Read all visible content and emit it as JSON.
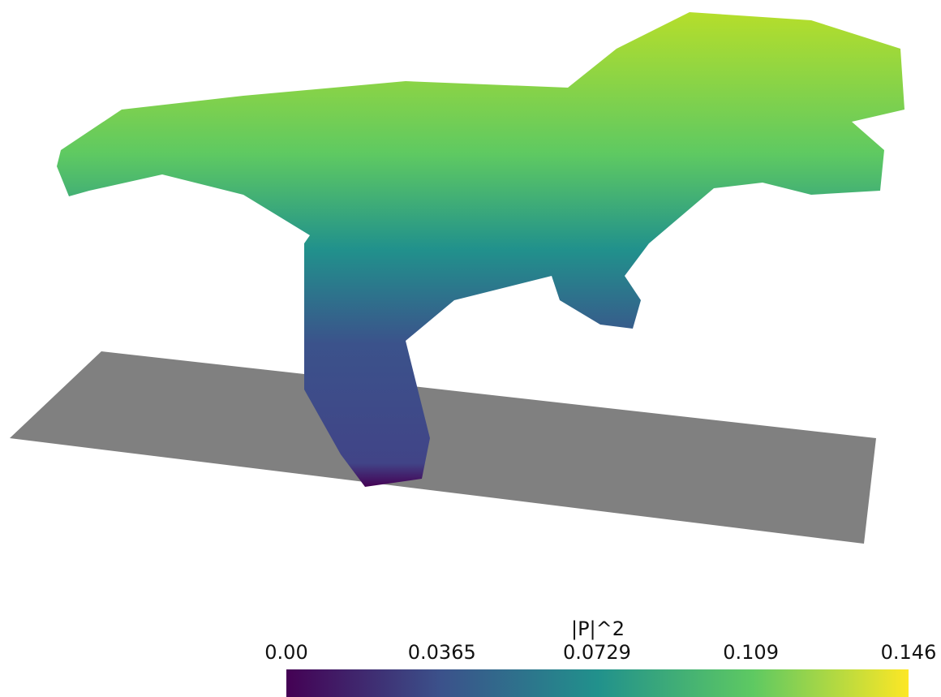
{
  "colorbar": {
    "title": "|P|^2",
    "lim": [
      0,
      0.146
    ],
    "ticks": [
      {
        "value": 0,
        "label": "0.00"
      },
      0.0365,
      0.0729,
      0.109,
      0.146
    ],
    "colormap": [
      "#440154",
      "#3b528b",
      "#21918c",
      "#5ec962",
      "#fde725"
    ]
  }
}
